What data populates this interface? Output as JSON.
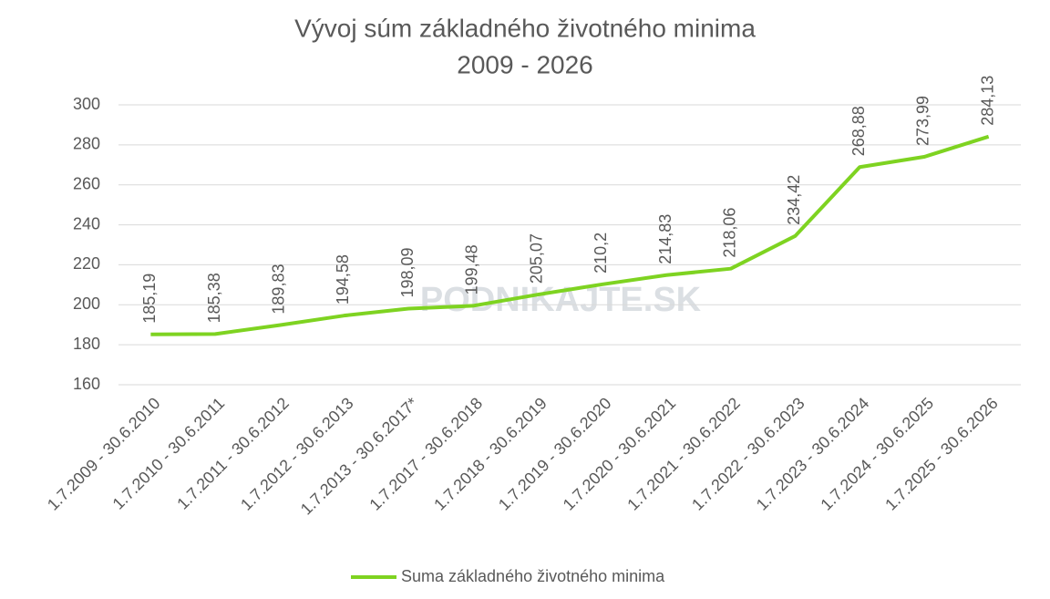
{
  "chart_data": {
    "type": "line",
    "title": "Vývoj súm základného životného minima",
    "subtitle": "2009 - 2026",
    "watermark": "PODNIKAJTE.SK",
    "categories": [
      "1.7.2009 - 30.6.2010",
      "1.7.2010 - 30.6.2011",
      "1.7.2011 - 30.6.2012",
      "1.7.2012 - 30.6.2013",
      "1.7.2013 - 30.6.2017*",
      "1.7.2017 - 30.6.2018",
      "1.7.2018 - 30.6.2019",
      "1.7.2019 - 30.6.2020",
      "1.7.2020 - 30.6.2021",
      "1.7.2021 - 30.6.2022",
      "1.7.2022 - 30.6.2023",
      "1.7.2023 - 30.6.2024",
      "1.7.2024 - 30.6.2025",
      "1.7.2025 - 30.6.2026"
    ],
    "series": [
      {
        "name": "Suma základného životného minima",
        "color": "#7ed321",
        "values": [
          185.19,
          185.38,
          189.83,
          194.58,
          198.09,
          199.48,
          205.07,
          210.2,
          214.83,
          218.06,
          234.42,
          268.88,
          273.99,
          284.13
        ],
        "value_labels": [
          "185,19",
          "185,38",
          "189,83",
          "194,58",
          "198,09",
          "199,48",
          "205,07",
          "210,2",
          "214,83",
          "218,06",
          "234,42",
          "268,88",
          "273,99",
          "284,13"
        ]
      }
    ],
    "ylim": [
      160,
      300
    ],
    "yticks": [
      160,
      180,
      200,
      220,
      240,
      260,
      280,
      300
    ],
    "grid": true,
    "legend": "bottom"
  }
}
